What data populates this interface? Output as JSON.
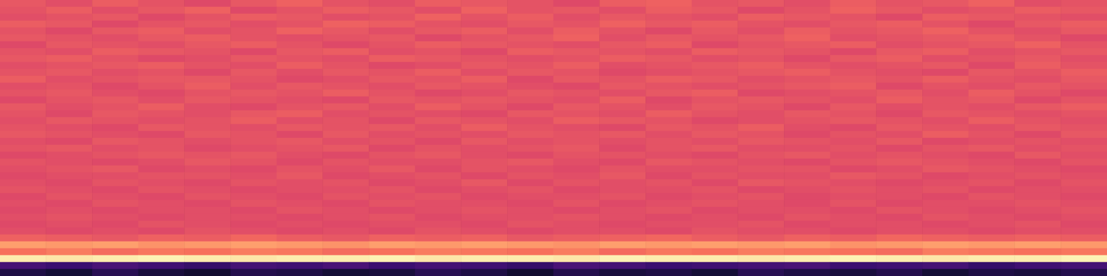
{
  "chart_data": {
    "type": "heatmap",
    "tick_labels": false,
    "color_range": [
      -80,
      0
    ],
    "cells": [
      [
        -29,
        -31,
        -28,
        -30,
        -32,
        -29,
        -27,
        -30,
        -31,
        -28,
        -29,
        -30,
        -32,
        -28,
        -27,
        -30,
        -29,
        -31,
        -28,
        -30,
        -29,
        -27,
        -31,
        -30
      ],
      [
        -30,
        -28,
        -31,
        -29,
        -27,
        -32,
        -30,
        -28,
        -29,
        -31,
        -27,
        -30,
        -29,
        -31,
        -28,
        -29,
        -32,
        -30,
        -27,
        -29,
        -31,
        -30,
        -28,
        -29
      ],
      [
        -31,
        -30,
        -29,
        -32,
        -30,
        -28,
        -29,
        -31,
        -30,
        -27,
        -30,
        -28,
        -31,
        -29,
        -30,
        -31,
        -28,
        -29,
        -30,
        -32,
        -28,
        -29,
        -30,
        -31
      ],
      [
        -28,
        -29,
        -32,
        -30,
        -29,
        -31,
        -30,
        -27,
        -28,
        -30,
        -31,
        -29,
        -30,
        -27,
        -29,
        -28,
        -30,
        -31,
        -29,
        -28,
        -30,
        -32,
        -29,
        -28
      ],
      [
        -30,
        -32,
        -29,
        -28,
        -31,
        -30,
        -27,
        -29,
        -31,
        -29,
        -28,
        -31,
        -28,
        -30,
        -32,
        -29,
        -31,
        -28,
        -30,
        -29,
        -27,
        -30,
        -31,
        -29
      ],
      [
        -29,
        -30,
        -31,
        -29,
        -28,
        -30,
        -31,
        -30,
        -29,
        -32,
        -30,
        -29,
        -27,
        -31,
        -29,
        -30,
        -29,
        -27,
        -31,
        -30,
        -29,
        -28,
        -30,
        -32
      ],
      [
        -32,
        -29,
        -30,
        -31,
        -29,
        -28,
        -30,
        -32,
        -30,
        -28,
        -29,
        -30,
        -31,
        -29,
        -28,
        -32,
        -30,
        -29,
        -28,
        -31,
        -30,
        -29,
        -27,
        -30
      ],
      [
        -30,
        -31,
        -28,
        -29,
        -30,
        -32,
        -29,
        -28,
        -31,
        -30,
        -32,
        -28,
        -29,
        -30,
        -31,
        -28,
        -29,
        -30,
        -32,
        -29,
        -28,
        -31,
        -30,
        -29
      ],
      [
        -29,
        -28,
        -30,
        -32,
        -31,
        -29,
        -30,
        -31,
        -28,
        -29,
        -30,
        -31,
        -30,
        -28,
        -29,
        -31,
        -30,
        -32,
        -29,
        -28,
        -31,
        -30,
        -29,
        -31
      ],
      [
        -31,
        -30,
        -29,
        -28,
        -30,
        -31,
        -28,
        -30,
        -32,
        -31,
        -29,
        -30,
        -28,
        -31,
        -30,
        -29,
        -28,
        -30,
        -31,
        -30,
        -29,
        -32,
        -28,
        -30
      ],
      [
        -30,
        -29,
        -31,
        -30,
        -32,
        -29,
        -31,
        -29,
        -30,
        -28,
        -31,
        -29,
        -30,
        -32,
        -31,
        -30,
        -29,
        -28,
        -30,
        -31,
        -32,
        -29,
        -30,
        -28
      ],
      [
        -28,
        -31,
        -30,
        -29,
        -29,
        -30,
        -32,
        -31,
        -29,
        -30,
        -28,
        -32,
        -29,
        -30,
        -28,
        -29,
        -31,
        -30,
        -29,
        -30,
        -28,
        -30,
        -31,
        -29
      ],
      [
        -31,
        -30,
        -32,
        -30,
        -28,
        -31,
        -29,
        -30,
        -31,
        -29,
        -30,
        -31,
        -32,
        -29,
        -30,
        -31,
        -30,
        -29,
        -28,
        -32,
        -30,
        -31,
        -29,
        -30
      ],
      [
        -30,
        -29,
        -31,
        -32,
        -30,
        -29,
        -30,
        -28,
        -30,
        -32,
        -31,
        -29,
        -30,
        -31,
        -29,
        -28,
        -32,
        -31,
        -30,
        -29,
        -31,
        -28,
        -30,
        -32
      ],
      [
        -32,
        -30,
        -29,
        -31,
        -29,
        -30,
        -31,
        -32,
        -29,
        -30,
        -29,
        -30,
        -31,
        -28,
        -32,
        -30,
        -29,
        -30,
        -31,
        -28,
        -30,
        -29,
        -32,
        -30
      ],
      [
        -29,
        -31,
        -30,
        -28,
        -31,
        -32,
        -30,
        -29,
        -31,
        -28,
        -30,
        -32,
        -29,
        -30,
        -31,
        -29,
        -30,
        -32,
        -29,
        -31,
        -30,
        -31,
        -29,
        -28
      ],
      [
        -30,
        -32,
        -29,
        -30,
        -31,
        -29,
        -28,
        -31,
        -30,
        -31,
        -32,
        -29,
        -30,
        -31,
        -28,
        -30,
        -31,
        -29,
        -30,
        -32,
        -29,
        -30,
        -31,
        -30
      ],
      [
        -31,
        -29,
        -30,
        -31,
        -30,
        -28,
        -31,
        -30,
        -32,
        -29,
        -30,
        -31,
        -28,
        -29,
        -30,
        -32,
        -31,
        -30,
        -29,
        -30,
        -31,
        -28,
        -30,
        -31
      ],
      [
        -30,
        -31,
        -32,
        -29,
        -30,
        -31,
        -29,
        -30,
        -29,
        -31,
        -28,
        -30,
        -31,
        -32,
        -29,
        -30,
        -28,
        -31,
        -32,
        -29,
        -30,
        -31,
        -29,
        -30
      ],
      [
        -29,
        -30,
        -31,
        -32,
        -29,
        -30,
        -32,
        -29,
        -31,
        -30,
        -31,
        -29,
        -30,
        -29,
        -31,
        -29,
        -30,
        -32,
        -30,
        -31,
        -28,
        -30,
        -32,
        -29
      ],
      [
        -31,
        -32,
        -29,
        -30,
        -31,
        -30,
        -29,
        -31,
        -30,
        -32,
        -29,
        -31,
        -30,
        -31,
        -30,
        -31,
        -29,
        -30,
        -31,
        -29,
        -32,
        -31,
        -30,
        -31
      ],
      [
        -30,
        -29,
        -31,
        -30,
        -32,
        -31,
        -30,
        -29,
        -32,
        -30,
        -31,
        -30,
        -29,
        -32,
        -30,
        -29,
        -31,
        -31,
        -30,
        -32,
        -30,
        -29,
        -31,
        -30
      ],
      [
        -32,
        -31,
        -30,
        -29,
        -30,
        -29,
        -31,
        -32,
        -30,
        -29,
        -31,
        -32,
        -30,
        -30,
        -31,
        -32,
        -30,
        -29,
        -31,
        -30,
        -31,
        -32,
        -29,
        -31
      ],
      [
        -30,
        -31,
        -32,
        -31,
        -29,
        -30,
        -32,
        -30,
        -31,
        -31,
        -30,
        -29,
        -31,
        -32,
        -29,
        -30,
        -31,
        -32,
        -30,
        -29,
        -30,
        -31,
        -32,
        -30
      ],
      [
        -31,
        -30,
        -29,
        -32,
        -31,
        -32,
        -30,
        -31,
        -29,
        -32,
        -30,
        -31,
        -32,
        -30,
        -31,
        -31,
        -30,
        -30,
        -32,
        -31,
        -29,
        -30,
        -31,
        -32
      ],
      [
        -32,
        -31,
        -31,
        -30,
        -30,
        -31,
        -29,
        -32,
        -31,
        -30,
        -32,
        -30,
        -31,
        -29,
        -32,
        -30,
        -31,
        -31,
        -29,
        -30,
        -32,
        -31,
        -30,
        -31
      ],
      [
        -31,
        -32,
        -30,
        -31,
        -32,
        -30,
        -31,
        -30,
        -32,
        -31,
        -29,
        -32,
        -30,
        -31,
        -30,
        -32,
        -29,
        -30,
        -31,
        -32,
        -31,
        -30,
        -32,
        -30
      ],
      [
        -30,
        -31,
        -32,
        -30,
        -31,
        -32,
        -31,
        -31,
        -30,
        -32,
        -31,
        -30,
        -32,
        -31,
        -31,
        -30,
        -32,
        -31,
        -30,
        -31,
        -30,
        -32,
        -31,
        -31
      ],
      [
        -32,
        -30,
        -31,
        -32,
        -30,
        -31,
        -32,
        -30,
        -31,
        -30,
        -32,
        -31,
        -31,
        -30,
        -32,
        -31,
        -30,
        -32,
        -31,
        -31,
        -32,
        -30,
        -31,
        -32
      ],
      [
        -31,
        -32,
        -30,
        -31,
        -32,
        -30,
        -31,
        -32,
        -30,
        -31,
        -31,
        -32,
        -30,
        -32,
        -31,
        -30,
        -31,
        -32,
        -30,
        -32,
        -31,
        -31,
        -30,
        -31
      ],
      [
        -32,
        -31,
        -32,
        -31,
        -31,
        -32,
        -30,
        -31,
        -32,
        -31,
        -30,
        -31,
        -32,
        -31,
        -30,
        -32,
        -31,
        -31,
        -32,
        -30,
        -31,
        -32,
        -31,
        -30
      ],
      [
        -31,
        -30,
        -31,
        -32,
        -31,
        -31,
        -32,
        -31,
        -30,
        -32,
        -31,
        -31,
        -30,
        -31,
        -32,
        -31,
        -32,
        -30,
        -31,
        -32,
        -30,
        -31,
        -32,
        -31
      ],
      [
        -32,
        -31,
        -32,
        -30,
        -31,
        -32,
        -31,
        -32,
        -31,
        -31,
        -32,
        -30,
        -31,
        -32,
        -31,
        -31,
        -30,
        -32,
        -31,
        -31,
        -32,
        -31,
        -30,
        -32
      ],
      [
        -31,
        -32,
        -31,
        -32,
        -30,
        -31,
        -32,
        -31,
        -32,
        -30,
        -31,
        -32,
        -31,
        -31,
        -32,
        -30,
        -31,
        -31,
        -32,
        -31,
        -31,
        -32,
        -31,
        -31
      ],
      [
        -27,
        -28,
        -29,
        -27,
        -28,
        -26,
        -28,
        -29,
        -27,
        -28,
        -27,
        -29,
        -28,
        -27,
        -26,
        -28,
        -29,
        -27,
        -28,
        -26,
        -27,
        -28,
        -27,
        -28
      ],
      [
        -16,
        -17,
        -16,
        -18,
        -17,
        -16,
        -17,
        -18,
        -16,
        -17,
        -16,
        -17,
        -18,
        -16,
        -17,
        -16,
        -17,
        -16,
        -18,
        -17,
        -16,
        -17,
        -16,
        -17
      ],
      [
        -24,
        -22,
        -25,
        -23,
        -24,
        -22,
        -23,
        -25,
        -24,
        -22,
        -23,
        -24,
        -22,
        -25,
        -23,
        -24,
        -22,
        -23,
        -24,
        -25,
        -22,
        -23,
        -24,
        -23
      ],
      [
        -3,
        -4,
        -3,
        -2,
        -3,
        -4,
        -3,
        -3,
        -2,
        -4,
        -3,
        -3,
        -4,
        -2,
        -3,
        -3,
        -4,
        -3,
        -2,
        -3,
        -4,
        -3,
        -3,
        -2
      ],
      [
        -62,
        -64,
        -61,
        -63,
        -65,
        -62,
        -63,
        -61,
        -64,
        -62,
        -63,
        -65,
        -61,
        -62,
        -64,
        -63,
        -62,
        -61,
        -64,
        -63,
        -62,
        -65,
        -63,
        -62
      ],
      [
        -70,
        -72,
        -68,
        -71,
        -73,
        -69,
        -70,
        -72,
        -71,
        -68,
        -70,
        -73,
        -69,
        -71,
        -70,
        -72,
        -68,
        -70,
        -71,
        -69,
        -72,
        -70,
        -71,
        -69
      ]
    ]
  }
}
